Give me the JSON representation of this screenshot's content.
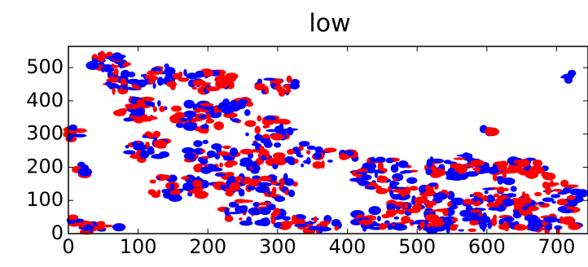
{
  "chart_data": {
    "type": "image",
    "title": "low",
    "xlim": [
      0,
      745
    ],
    "ylim": [
      0,
      564
    ],
    "xticks": [
      0,
      100,
      200,
      300,
      400,
      500,
      600,
      700
    ],
    "yticks": [
      0,
      100,
      200,
      300,
      400,
      500
    ]
  }
}
